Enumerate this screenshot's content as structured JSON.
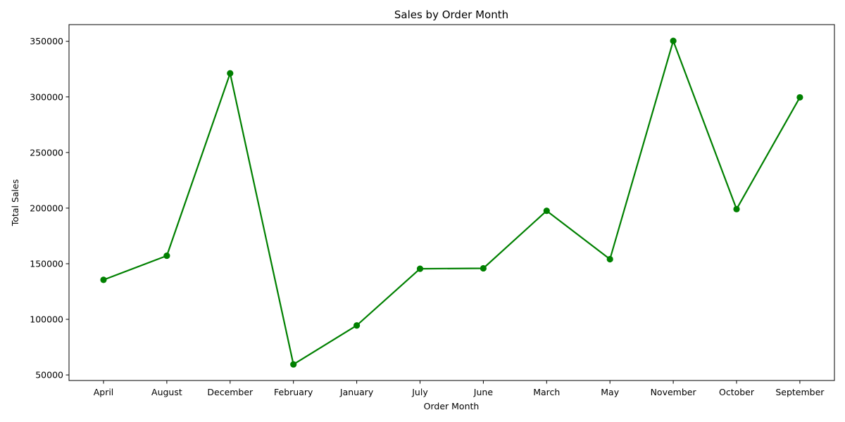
{
  "chart_data": {
    "type": "line",
    "title": "Sales by Order Month",
    "xlabel": "Order Month",
    "ylabel": "Total Sales",
    "categories": [
      "April",
      "August",
      "December",
      "February",
      "January",
      "July",
      "June",
      "March",
      "May",
      "November",
      "October",
      "September"
    ],
    "series": [
      {
        "name": "Total Sales",
        "color": "#008000",
        "marker": "circle",
        "values": [
          135500,
          157200,
          321200,
          59500,
          94500,
          145500,
          145900,
          197600,
          154100,
          350400,
          199100,
          299600
        ]
      }
    ],
    "yticks": [
      50000,
      100000,
      150000,
      200000,
      250000,
      300000,
      350000
    ],
    "ytick_labels": [
      "50000",
      "100000",
      "150000",
      "200000",
      "250000",
      "300000",
      "350000"
    ],
    "ylim": [
      45000,
      365000
    ],
    "grid": false,
    "legend": "none"
  }
}
